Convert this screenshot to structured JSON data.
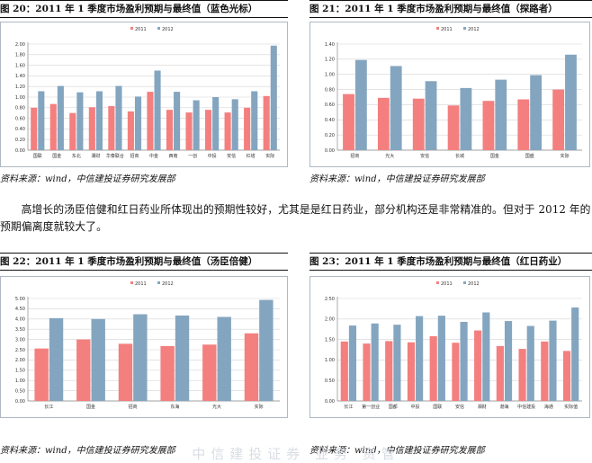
{
  "body_text": "高增长的汤臣倍健和红日药业所体现出的预期性较好，尤其是是红日药业，部分机构还是非常精准的。但对于 2012 年的预期偏离度就较大了。",
  "watermark_text": "中信建投证券  业务  资管",
  "colors": {
    "s2011": "#f47f7f",
    "s2012": "#84a5bf"
  },
  "figures": [
    {
      "title": "图 20：2011 年 1 季度市场盈利预期与最终值（蓝色光标）",
      "source": "资料来源：wind，中信建投证券研究发展部",
      "chart_data": {
        "type": "bar",
        "categories": [
          "国联",
          "国金",
          "东北",
          "湘财",
          "华泰联合",
          "招商",
          "中金",
          "西南",
          "一创",
          "中投",
          "安信",
          "红塔",
          "实际"
        ],
        "series": [
          {
            "name": "2011",
            "values": [
              0.8,
              0.87,
              0.7,
              0.81,
              0.83,
              0.73,
              1.1,
              0.76,
              0.71,
              0.76,
              0.71,
              0.8,
              1.02
            ]
          },
          {
            "name": "2012",
            "values": [
              1.11,
              1.21,
              1.09,
              1.11,
              1.21,
              1.01,
              1.5,
              1.1,
              0.94,
              1.0,
              0.96,
              1.11,
              1.97
            ]
          }
        ],
        "yticks": [
          "0.00",
          "0.20",
          "0.40",
          "0.60",
          "0.80",
          "1.00",
          "1.20",
          "1.40",
          "1.60",
          "1.80",
          "2.00"
        ],
        "ylim": [
          0,
          2.0
        ]
      }
    },
    {
      "title": "图 21：2011 年 1 季度市场盈利预期与最终值（探路者）",
      "source": "资料来源：wind，中信建投证券研究发展部",
      "chart_data": {
        "type": "bar",
        "categories": [
          "招商",
          "光大",
          "安信",
          "长城",
          "国金",
          "国盛",
          "实际"
        ],
        "series": [
          {
            "name": "2011",
            "values": [
              0.74,
              0.69,
              0.68,
              0.59,
              0.65,
              0.67,
              0.8
            ]
          },
          {
            "name": "2012",
            "values": [
              1.19,
              1.11,
              0.91,
              0.82,
              0.93,
              0.99,
              1.26
            ]
          }
        ],
        "yticks": [
          "0.00",
          "0.20",
          "0.40",
          "0.60",
          "0.80",
          "1.00",
          "1.20",
          "1.40"
        ],
        "ylim": [
          0,
          1.4
        ]
      }
    },
    {
      "title": "图 22：2011 年 1 季度市场盈利预期与最终值（汤臣倍健）",
      "source": "资料来源：wind，中信建投证券研究发展部",
      "chart_data": {
        "type": "bar",
        "categories": [
          "长江",
          "国金",
          "招商",
          "东海",
          "光大",
          "实际"
        ],
        "series": [
          {
            "name": "2011",
            "values": [
              2.56,
              3.0,
              2.79,
              2.68,
              2.75,
              3.3
            ]
          },
          {
            "name": "2012",
            "values": [
              4.04,
              4.0,
              4.23,
              4.17,
              4.1,
              4.93
            ]
          }
        ],
        "yticks": [
          "0.00",
          "0.50",
          "1.00",
          "1.50",
          "2.00",
          "2.50",
          "3.00",
          "3.50",
          "4.00",
          "4.50",
          "5.00"
        ],
        "ylim": [
          0,
          5.0
        ]
      }
    },
    {
      "title": "图 23：2011 年 1 季度市场盈利预期与最终值（红日药业）",
      "source": "资料来源：wind，中信建投证券研究发展部",
      "chart_data": {
        "type": "bar",
        "categories": [
          "长江",
          "第一创业",
          "国都",
          "中投",
          "国联",
          "安信",
          "湘财",
          "渤海",
          "中信建投",
          "海通",
          "实际值"
        ],
        "series": [
          {
            "name": "2011",
            "values": [
              1.45,
              1.4,
              1.46,
              1.43,
              1.58,
              1.42,
              1.72,
              1.34,
              1.27,
              1.45,
              1.22
            ]
          },
          {
            "name": "2012",
            "values": [
              1.84,
              1.89,
              1.86,
              2.07,
              2.08,
              1.93,
              2.16,
              1.95,
              1.83,
              1.96,
              2.28
            ]
          }
        ],
        "yticks": [
          "0.00",
          "0.50",
          "1.00",
          "1.50",
          "2.00",
          "2.50"
        ],
        "ylim": [
          0,
          2.5
        ]
      }
    }
  ]
}
